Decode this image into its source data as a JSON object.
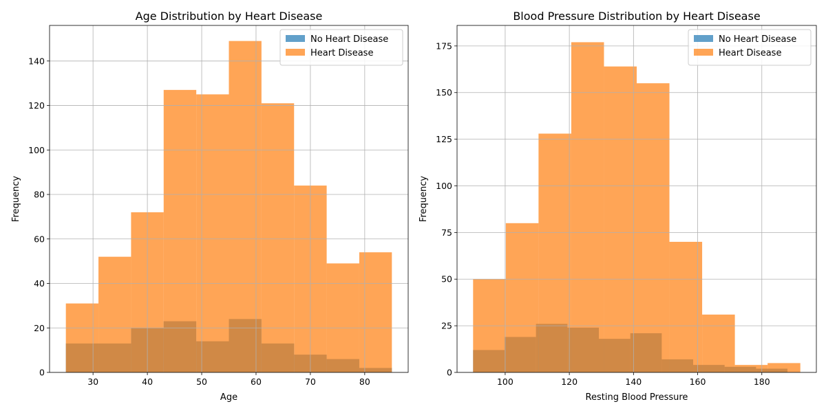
{
  "chart_data": [
    {
      "type": "histogram",
      "title": "Age Distribution by Heart Disease",
      "xlabel": "Age",
      "ylabel": "Frequency",
      "xlim": [
        22,
        88
      ],
      "ylim": [
        0,
        156
      ],
      "xticks": [
        30,
        40,
        50,
        60,
        70,
        80
      ],
      "yticks": [
        0,
        20,
        40,
        60,
        80,
        100,
        120,
        140
      ],
      "grid": true,
      "legend_position": "top-right",
      "series": [
        {
          "name": "No Heart Disease",
          "color": "#1f77b4",
          "alpha": 0.7,
          "bins": [
            25,
            31,
            37,
            43,
            49,
            55,
            61,
            67,
            73,
            79,
            85
          ],
          "values": [
            13,
            13,
            20,
            23,
            14,
            24,
            13,
            8,
            6,
            2
          ]
        },
        {
          "name": "Heart Disease",
          "color": "#ff7f0e",
          "alpha": 0.7,
          "bins": [
            25,
            31,
            37,
            43,
            49,
            55,
            61,
            67,
            73,
            79,
            85
          ],
          "values": [
            31,
            52,
            72,
            127,
            125,
            149,
            121,
            84,
            49,
            54
          ]
        }
      ]
    },
    {
      "type": "histogram",
      "title": "Blood Pressure Distribution by Heart Disease",
      "xlabel": "Resting Blood Pressure",
      "ylabel": "Frequency",
      "xlim": [
        85,
        197
      ],
      "ylim": [
        0,
        186
      ],
      "xticks": [
        100,
        120,
        140,
        160,
        180
      ],
      "yticks": [
        0,
        25,
        50,
        75,
        100,
        125,
        150,
        175
      ],
      "grid": true,
      "legend_position": "top-right",
      "series": [
        {
          "name": "No Heart Disease",
          "color": "#1f77b4",
          "alpha": 0.7,
          "bins": [
            90,
            99.8,
            109.6,
            119.4,
            129.2,
            139,
            148.8,
            158.6,
            168.4,
            178.2,
            188
          ],
          "values": [
            12,
            19,
            26,
            24,
            18,
            21,
            7,
            4,
            3,
            2
          ]
        },
        {
          "name": "Heart Disease",
          "color": "#ff7f0e",
          "alpha": 0.7,
          "bins": [
            90,
            100.2,
            110.4,
            120.6,
            130.8,
            141,
            151.2,
            161.4,
            171.6,
            181.8,
            192
          ],
          "values": [
            50,
            80,
            128,
            177,
            164,
            155,
            70,
            31,
            4,
            5
          ]
        }
      ]
    }
  ]
}
